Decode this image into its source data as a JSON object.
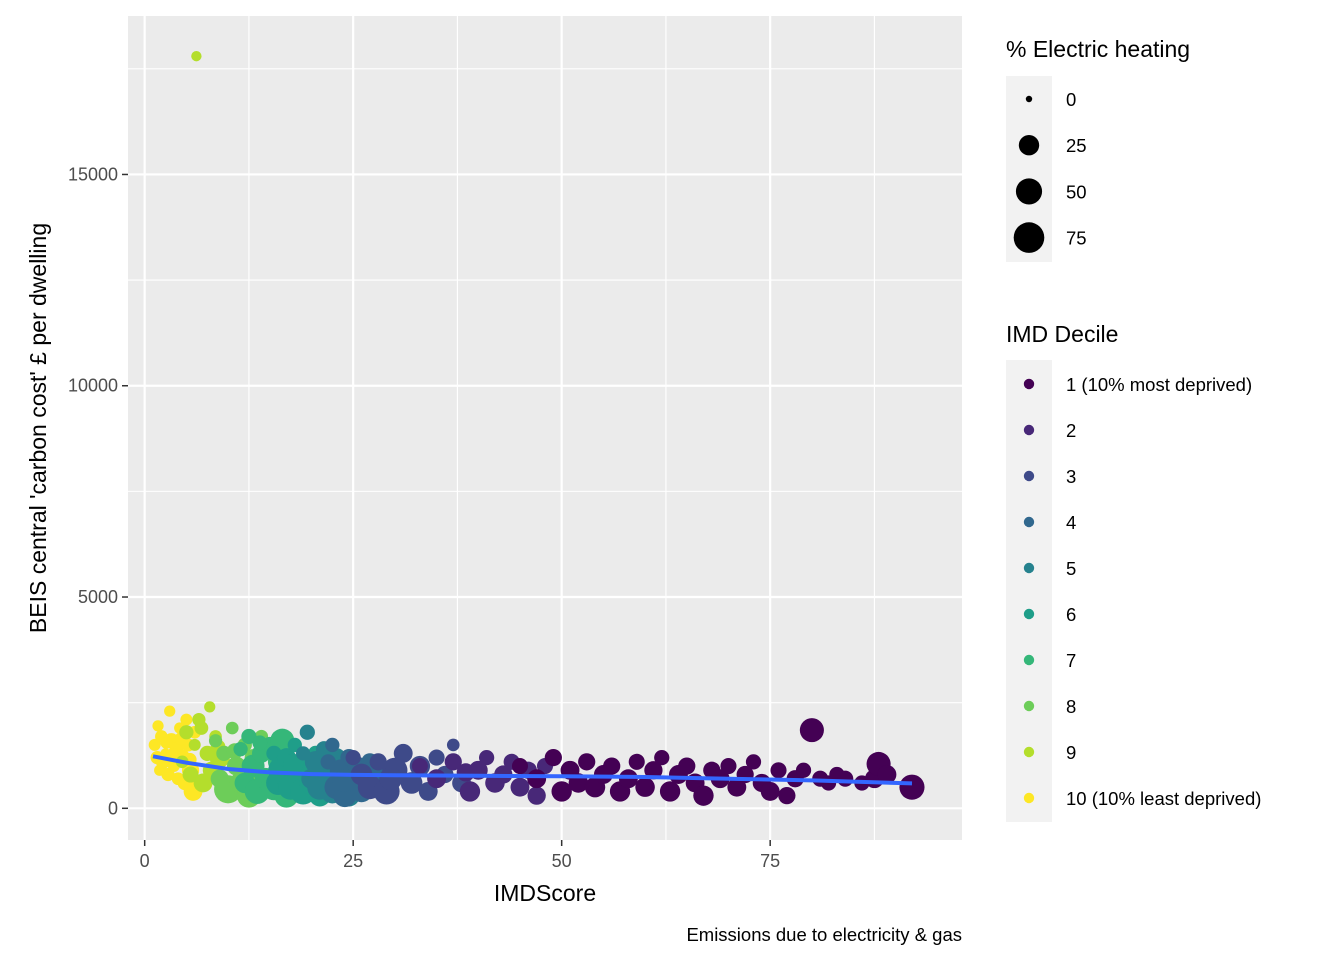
{
  "chart_data": {
    "type": "scatter",
    "title": "",
    "xlabel": "IMDScore",
    "ylabel": "BEIS central 'carbon cost' £ per dwelling",
    "caption": "Emissions due to electricity & gas",
    "xlim": [
      -2,
      98
    ],
    "ylim": [
      -750,
      18750
    ],
    "x_ticks": [
      0,
      25,
      50,
      75
    ],
    "x_tick_labels": [
      "0",
      "25",
      "50",
      "75"
    ],
    "y_ticks": [
      0,
      5000,
      10000,
      15000
    ],
    "y_tick_labels": [
      "0",
      "5000",
      "10000",
      "15000"
    ],
    "grid": true,
    "size_legend": {
      "title": "% Electric heating",
      "breaks": [
        0,
        25,
        50,
        75
      ],
      "labels": [
        "0",
        "25",
        "50",
        "75"
      ]
    },
    "color_legend": {
      "title": "IMD Decile",
      "labels": [
        "1 (10% most deprived)",
        "2",
        "3",
        "4",
        "5",
        "6",
        "7",
        "8",
        "9",
        "10 (10% least deprived)"
      ],
      "colors": [
        "#440154",
        "#482878",
        "#3E4A89",
        "#31688E",
        "#26828E",
        "#1F9E89",
        "#35B779",
        "#6DCD59",
        "#B4DE2C",
        "#FDE725"
      ]
    },
    "series": [
      {
        "name": "10 (10% least deprived)",
        "decile": 10,
        "points": [
          [
            1.2,
            1500,
            4
          ],
          [
            1.5,
            1200,
            6
          ],
          [
            1.8,
            900,
            3
          ],
          [
            2.0,
            1700,
            5
          ],
          [
            2.2,
            1100,
            8
          ],
          [
            2.5,
            1300,
            2
          ],
          [
            2.8,
            800,
            6
          ],
          [
            3.0,
            2300,
            3
          ],
          [
            3.2,
            1600,
            10
          ],
          [
            3.5,
            1000,
            4
          ],
          [
            3.8,
            1400,
            7
          ],
          [
            4.0,
            700,
            5
          ],
          [
            4.2,
            1900,
            3
          ],
          [
            4.5,
            1200,
            12
          ],
          [
            4.8,
            600,
            8
          ],
          [
            5.0,
            2100,
            4
          ],
          [
            5.2,
            1500,
            6
          ],
          [
            5.5,
            900,
            15
          ],
          [
            5.8,
            400,
            20
          ],
          [
            6.0,
            1800,
            5
          ],
          [
            1.6,
            1950,
            3
          ],
          [
            2.6,
            1550,
            4
          ],
          [
            3.4,
            1250,
            9
          ],
          [
            4.4,
            1650,
            6
          ],
          [
            5.4,
            1150,
            7
          ]
        ]
      },
      {
        "name": "9",
        "decile": 9,
        "points": [
          [
            4.5,
            1100,
            5
          ],
          [
            5.0,
            1800,
            8
          ],
          [
            5.5,
            800,
            12
          ],
          [
            6.0,
            1500,
            4
          ],
          [
            6.2,
            17800,
            2
          ],
          [
            6.5,
            2100,
            6
          ],
          [
            7.0,
            600,
            20
          ],
          [
            7.5,
            1300,
            10
          ],
          [
            7.8,
            2400,
            3
          ],
          [
            8.0,
            900,
            15
          ],
          [
            8.5,
            1700,
            5
          ],
          [
            9.0,
            1200,
            25
          ],
          [
            9.5,
            500,
            8
          ],
          [
            6.8,
            1900,
            7
          ],
          [
            8.8,
            1450,
            9
          ]
        ]
      },
      {
        "name": "8",
        "decile": 8,
        "points": [
          [
            8.5,
            1600,
            6
          ],
          [
            9.0,
            700,
            18
          ],
          [
            9.5,
            1300,
            10
          ],
          [
            10.0,
            450,
            60
          ],
          [
            10.5,
            1900,
            5
          ],
          [
            11.0,
            1000,
            20
          ],
          [
            11.5,
            600,
            30
          ],
          [
            12.0,
            1500,
            8
          ],
          [
            12.5,
            300,
            40
          ],
          [
            13.0,
            1200,
            14
          ],
          [
            13.5,
            800,
            22
          ],
          [
            14.0,
            1700,
            6
          ],
          [
            10.8,
            1350,
            12
          ]
        ]
      },
      {
        "name": "7",
        "decile": 7,
        "points": [
          [
            11.5,
            1400,
            8
          ],
          [
            12.0,
            600,
            25
          ],
          [
            12.5,
            1700,
            10
          ],
          [
            13.0,
            1000,
            35
          ],
          [
            13.5,
            400,
            45
          ],
          [
            14.0,
            1300,
            20
          ],
          [
            14.5,
            700,
            30
          ],
          [
            15.0,
            1500,
            12
          ],
          [
            15.5,
            500,
            50
          ],
          [
            16.0,
            1100,
            25
          ],
          [
            16.5,
            1600,
            40
          ],
          [
            17.0,
            300,
            40
          ],
          [
            17.5,
            900,
            28
          ],
          [
            13.8,
            1550,
            9
          ]
        ]
      },
      {
        "name": "6",
        "decile": 6,
        "points": [
          [
            15.5,
            1300,
            10
          ],
          [
            16.0,
            600,
            40
          ],
          [
            16.5,
            900,
            60
          ],
          [
            17.0,
            1200,
            20
          ],
          [
            17.5,
            500,
            45
          ],
          [
            18.0,
            1500,
            8
          ],
          [
            18.5,
            800,
            35
          ],
          [
            19.0,
            400,
            50
          ],
          [
            19.5,
            1100,
            20
          ],
          [
            20.0,
            600,
            40
          ],
          [
            20.5,
            1300,
            10
          ],
          [
            21.0,
            300,
            30
          ],
          [
            17.8,
            1050,
            25
          ]
        ]
      },
      {
        "name": "5",
        "decile": 5,
        "points": [
          [
            19.0,
            1300,
            8
          ],
          [
            19.5,
            1800,
            10
          ],
          [
            20.0,
            700,
            25
          ],
          [
            20.5,
            1100,
            30
          ],
          [
            21.0,
            500,
            45
          ],
          [
            21.5,
            1400,
            12
          ],
          [
            22.0,
            900,
            35
          ],
          [
            22.5,
            400,
            40
          ],
          [
            23.0,
            1200,
            20
          ],
          [
            23.5,
            700,
            30
          ],
          [
            24.0,
            1000,
            25
          ],
          [
            24.5,
            300,
            30
          ],
          [
            25.0,
            800,
            20
          ],
          [
            21.8,
            1150,
            18
          ]
        ]
      },
      {
        "name": "4",
        "decile": 4,
        "points": [
          [
            22.0,
            1100,
            10
          ],
          [
            22.5,
            1500,
            8
          ],
          [
            23.0,
            500,
            40
          ],
          [
            23.5,
            900,
            30
          ],
          [
            24.0,
            300,
            35
          ],
          [
            24.5,
            1200,
            15
          ],
          [
            25.0,
            700,
            28
          ],
          [
            25.5,
            1000,
            20
          ],
          [
            26.0,
            400,
            30
          ],
          [
            26.5,
            800,
            25
          ],
          [
            27.0,
            1100,
            15
          ],
          [
            27.5,
            500,
            25
          ],
          [
            28.0,
            900,
            20
          ],
          [
            23.8,
            650,
            32
          ]
        ]
      },
      {
        "name": "3",
        "decile": 3,
        "points": [
          [
            25.0,
            1200,
            10
          ],
          [
            26.0,
            800,
            30
          ],
          [
            27.0,
            500,
            40
          ],
          [
            28.0,
            1100,
            15
          ],
          [
            29.0,
            400,
            50
          ],
          [
            30.0,
            900,
            45
          ],
          [
            31.0,
            1300,
            20
          ],
          [
            32.0,
            600,
            30
          ],
          [
            33.0,
            1000,
            25
          ],
          [
            34.0,
            400,
            20
          ],
          [
            35.0,
            1200,
            12
          ],
          [
            36.0,
            800,
            15
          ],
          [
            37.0,
            1500,
            5
          ],
          [
            38.0,
            600,
            20
          ],
          [
            29.5,
            700,
            35
          ]
        ]
      },
      {
        "name": "2",
        "decile": 2,
        "points": [
          [
            33.0,
            1000,
            12
          ],
          [
            35.0,
            700,
            20
          ],
          [
            37.0,
            1100,
            15
          ],
          [
            39.0,
            400,
            25
          ],
          [
            40.0,
            900,
            20
          ],
          [
            41.0,
            1200,
            10
          ],
          [
            42.0,
            600,
            22
          ],
          [
            43.0,
            800,
            18
          ],
          [
            44.0,
            1100,
            12
          ],
          [
            45.0,
            500,
            20
          ],
          [
            46.0,
            900,
            15
          ],
          [
            47.0,
            300,
            18
          ],
          [
            48.0,
            1000,
            12
          ],
          [
            38.5,
            850,
            18
          ]
        ]
      },
      {
        "name": "1 (10% most deprived)",
        "decile": 1,
        "points": [
          [
            45.0,
            1000,
            12
          ],
          [
            47.0,
            700,
            20
          ],
          [
            49.0,
            1200,
            15
          ],
          [
            50.0,
            400,
            25
          ],
          [
            51.0,
            900,
            20
          ],
          [
            52.0,
            600,
            22
          ],
          [
            53.0,
            1100,
            15
          ],
          [
            54.0,
            500,
            25
          ],
          [
            55.0,
            800,
            20
          ],
          [
            56.0,
            1000,
            15
          ],
          [
            57.0,
            400,
            25
          ],
          [
            58.0,
            700,
            20
          ],
          [
            59.0,
            1100,
            12
          ],
          [
            60.0,
            500,
            22
          ],
          [
            61.0,
            900,
            18
          ],
          [
            62.0,
            1200,
            10
          ],
          [
            63.0,
            400,
            25
          ],
          [
            64.0,
            800,
            20
          ],
          [
            65.0,
            1000,
            15
          ],
          [
            66.0,
            600,
            20
          ],
          [
            67.0,
            300,
            25
          ],
          [
            68.0,
            900,
            15
          ],
          [
            69.0,
            700,
            20
          ],
          [
            70.0,
            1000,
            12
          ],
          [
            71.0,
            500,
            20
          ],
          [
            72.0,
            800,
            15
          ],
          [
            73.0,
            1100,
            10
          ],
          [
            74.0,
            600,
            18
          ],
          [
            75.0,
            400,
            20
          ],
          [
            76.0,
            900,
            12
          ],
          [
            77.0,
            300,
            15
          ],
          [
            78.0,
            700,
            15
          ],
          [
            79.0,
            900,
            10
          ],
          [
            80.0,
            1850,
            40
          ],
          [
            81.0,
            700,
            12
          ],
          [
            82.0,
            600,
            10
          ],
          [
            83.0,
            800,
            10
          ],
          [
            84.0,
            700,
            12
          ],
          [
            86.0,
            600,
            10
          ],
          [
            87.5,
            700,
            20
          ],
          [
            88.0,
            1050,
            40
          ],
          [
            89.0,
            800,
            20
          ],
          [
            92.0,
            500,
            45
          ]
        ]
      }
    ],
    "smooth_line": {
      "color": "#3366FF",
      "x": [
        1,
        5,
        10,
        15,
        20,
        25,
        30,
        40,
        50,
        60,
        70,
        80,
        92
      ],
      "y": [
        1230,
        1080,
        930,
        850,
        810,
        790,
        780,
        770,
        760,
        740,
        700,
        660,
        590
      ]
    }
  }
}
